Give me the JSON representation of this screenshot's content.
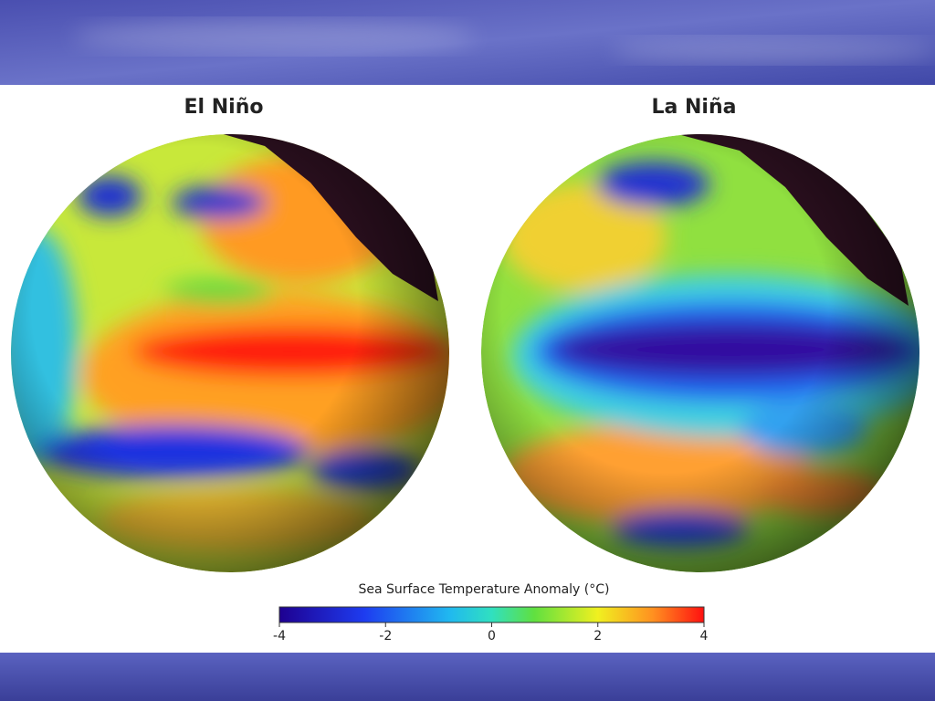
{
  "panels": [
    {
      "title": "El Niño"
    },
    {
      "title": "La Niña"
    }
  ],
  "colorbar": {
    "label": "Sea Surface Temperature Anomaly (°C)",
    "range": [
      -4,
      4
    ],
    "ticks": [
      -4,
      -2,
      0,
      2,
      4
    ]
  }
}
